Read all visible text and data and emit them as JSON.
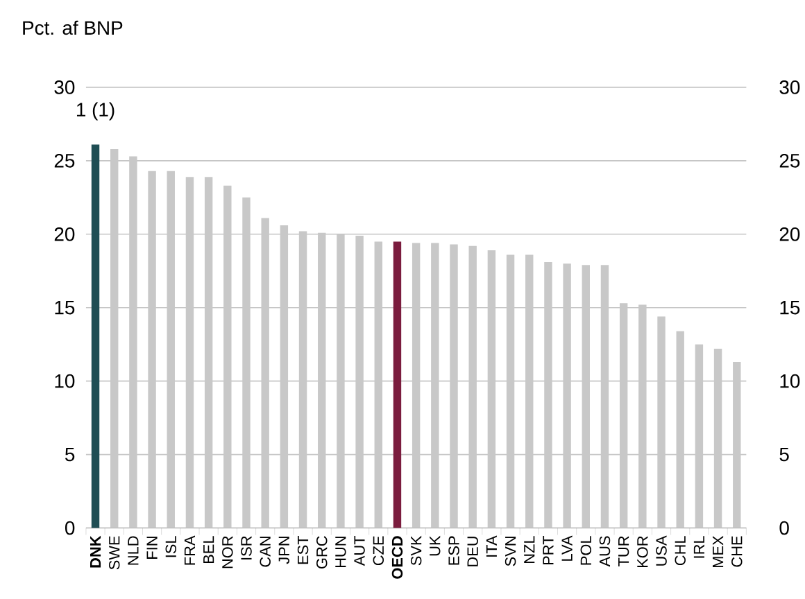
{
  "chart_data": {
    "type": "bar",
    "ylabel": "Pct. af BNP",
    "categories": [
      "DNK",
      "SWE",
      "NLD",
      "FIN",
      "ISL",
      "FRA",
      "BEL",
      "NOR",
      "ISR",
      "CAN",
      "JPN",
      "EST",
      "GRC",
      "HUN",
      "AUT",
      "CZE",
      "OECD",
      "SVK",
      "UK",
      "ESP",
      "DEU",
      "ITA",
      "SVN",
      "NZL",
      "PRT",
      "LVA",
      "POL",
      "AUS",
      "TUR",
      "KOR",
      "USA",
      "CHL",
      "IRL",
      "MEX",
      "CHE"
    ],
    "values": [
      26.1,
      25.8,
      25.3,
      24.3,
      24.3,
      23.9,
      23.9,
      23.3,
      22.5,
      21.1,
      20.6,
      20.2,
      20.1,
      20.0,
      19.9,
      19.5,
      19.5,
      19.4,
      19.4,
      19.3,
      19.2,
      18.9,
      18.6,
      18.6,
      18.1,
      18.0,
      17.9,
      17.9,
      15.3,
      15.2,
      14.4,
      13.4,
      12.5,
      12.2,
      11.3
    ],
    "colors": [
      "#1f4e54",
      "#c8c8c8",
      "#c8c8c8",
      "#c8c8c8",
      "#c8c8c8",
      "#c8c8c8",
      "#c8c8c8",
      "#c8c8c8",
      "#c8c8c8",
      "#c8c8c8",
      "#c8c8c8",
      "#c8c8c8",
      "#c8c8c8",
      "#c8c8c8",
      "#c8c8c8",
      "#c8c8c8",
      "#7b1c3e",
      "#c8c8c8",
      "#c8c8c8",
      "#c8c8c8",
      "#c8c8c8",
      "#c8c8c8",
      "#c8c8c8",
      "#c8c8c8",
      "#c8c8c8",
      "#c8c8c8",
      "#c8c8c8",
      "#c8c8c8",
      "#c8c8c8",
      "#c8c8c8",
      "#c8c8c8",
      "#c8c8c8",
      "#c8c8c8",
      "#c8c8c8",
      "#c8c8c8"
    ],
    "ylim": [
      0,
      30
    ],
    "yticks": [
      0,
      5,
      10,
      15,
      20,
      25,
      30
    ],
    "y2lim": [
      0,
      30
    ],
    "y2ticks": [
      0,
      5,
      10,
      15,
      20,
      25,
      30
    ],
    "grid": "y",
    "annotations": [
      {
        "text": "1 (1)",
        "x": "DNK",
        "y": 26.1
      }
    ]
  }
}
